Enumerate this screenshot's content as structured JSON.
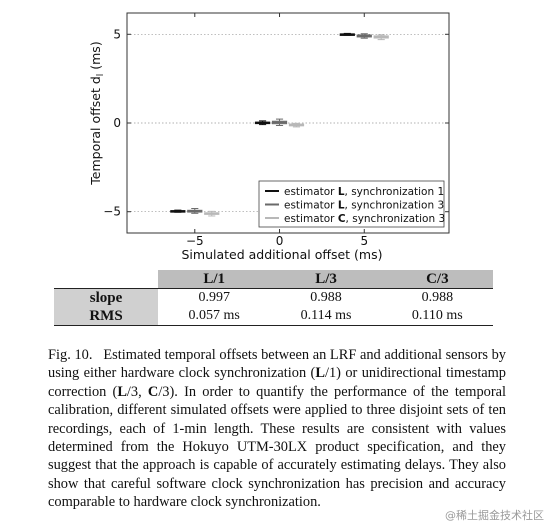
{
  "chart_data": {
    "type": "boxplot",
    "xlabel": "Simulated additional offset (ms)",
    "ylabel": "Temporal offset d",
    "ylabel_subscript": "l",
    "ylabel_unit": "(ms)",
    "xlim": [
      -9,
      10
    ],
    "ylim": [
      -6.2,
      6.2
    ],
    "xticks": [
      -5,
      0,
      5
    ],
    "xtick_labels": [
      "−5",
      "0",
      "5"
    ],
    "yticks": [
      -5,
      0,
      5
    ],
    "ytick_labels": [
      "−5",
      "0",
      "5"
    ],
    "grid": "horizontal dotted at ticks",
    "legend_position": "bottom-right",
    "series": [
      {
        "name_pre": "estimator ",
        "name_bold": "L",
        "name_post": ", synchronization 1",
        "color": "#111111",
        "boxes": [
          {
            "x": -5,
            "median": -4.97,
            "q1": -5.0,
            "q3": -4.94,
            "whislo": -5.03,
            "whishi": -4.91
          },
          {
            "x": 0,
            "median": 0.01,
            "q1": -0.03,
            "q3": 0.05,
            "whislo": -0.09,
            "whishi": 0.12
          },
          {
            "x": 5,
            "median": 5.0,
            "q1": 4.98,
            "q3": 5.02,
            "whislo": 4.95,
            "whishi": 5.05
          }
        ]
      },
      {
        "name_pre": "estimator ",
        "name_bold": "L",
        "name_post": ", synchronization 3",
        "color": "#6a6a6a",
        "boxes": [
          {
            "x": -5,
            "median": -4.97,
            "q1": -5.02,
            "q3": -4.92,
            "whislo": -5.09,
            "whishi": -4.82
          },
          {
            "x": 0,
            "median": 0.03,
            "q1": -0.04,
            "q3": 0.1,
            "whislo": -0.14,
            "whishi": 0.22
          },
          {
            "x": 5,
            "median": 4.9,
            "q1": 4.85,
            "q3": 4.96,
            "whislo": 4.78,
            "whishi": 5.03
          }
        ]
      },
      {
        "name_pre": "estimator ",
        "name_bold": "C",
        "name_post": ", synchronization 3",
        "color": "#b8b8b8",
        "boxes": [
          {
            "x": -5,
            "median": -5.1,
            "q1": -5.15,
            "q3": -5.06,
            "whislo": -5.24,
            "whishi": -4.98
          },
          {
            "x": 0,
            "median": -0.11,
            "q1": -0.16,
            "q3": -0.06,
            "whislo": -0.22,
            "whishi": -0.02
          },
          {
            "x": 5,
            "median": 4.85,
            "q1": 4.79,
            "q3": 4.91,
            "whislo": 4.7,
            "whishi": 4.97
          }
        ]
      }
    ]
  },
  "table": {
    "columns": [
      "L/1",
      "L/3",
      "C/3"
    ],
    "rows": [
      {
        "label": "slope",
        "values": [
          "0.997",
          "0.988",
          "0.988"
        ]
      },
      {
        "label": "RMS",
        "values": [
          "0.057 ms",
          "0.114 ms",
          "0.110 ms"
        ]
      }
    ]
  },
  "caption": {
    "label": "Fig. 10.",
    "t1": "Estimated temporal offsets between an LRF and additional sensors by using either hardware clock synchronization (",
    "b1": "L",
    "t2": "/1) or unidirectional timestamp correction (",
    "b2": "L",
    "t3": "/3, ",
    "b3": "C",
    "t4": "/3). In order to quantify the performance of the temporal calibration, different simulated offsets were applied to three disjoint sets of ten recordings, each of 1-min length. These results are consistent with values determined from the Hokuyo UTM-30LX product specification, and they suggest that the approach is capable of accurately estimating delays. They also show that careful software clock synchronization has precision and accuracy comparable to hardware clock synchronization."
  },
  "watermark": "@稀土掘金技术社区"
}
